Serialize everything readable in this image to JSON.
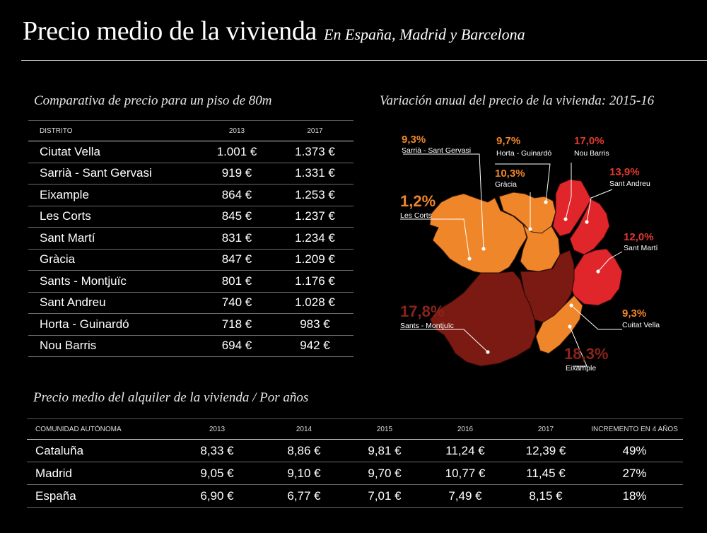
{
  "header": {
    "title": "Precio medio de la vivienda",
    "subtitle": "En España, Madrid y Barcelona"
  },
  "price_section": {
    "heading": "Comparativa de precio para un piso de 80m",
    "columns": [
      "DISTRITO",
      "2013",
      "2017"
    ],
    "rows": [
      [
        "Ciutat Vella",
        "1.001 €",
        "1.373 €"
      ],
      [
        "Sarrià - Sant Gervasi",
        "919 €",
        "1.331 €"
      ],
      [
        "Eixample",
        "864 €",
        "1.253 €"
      ],
      [
        "Les Corts",
        "845 €",
        "1.237 €"
      ],
      [
        "Sant Martí",
        "831 €",
        "1.234 €"
      ],
      [
        "Gràcia",
        "847 €",
        "1.209 €"
      ],
      [
        "Sants - Montjuïc",
        "801 €",
        "1.176 €"
      ],
      [
        "Sant Andreu",
        "740 €",
        "1.028 €"
      ],
      [
        "Horta - Guinardó",
        "718 €",
        "983 €"
      ],
      [
        "Nou Barris",
        "694 €",
        "942 €"
      ]
    ]
  },
  "map_section": {
    "heading": "Variación anual del precio de la vivienda: 2015-16",
    "colors": {
      "light": "#f0862a",
      "red": "#e0262b",
      "dark": "#7a1a12",
      "orange_text": "#f0862a",
      "red_text": "#e23a2e",
      "dark_text": "#8a2418"
    },
    "districts": [
      {
        "name": "Sarrià - Sant Gervasi",
        "pct": "9,3%"
      },
      {
        "name": "Horta - Guinardó",
        "pct": "9,7%"
      },
      {
        "name": "Nou Barris",
        "pct": "17,0%"
      },
      {
        "name": "Gràcia",
        "pct": "10,3%"
      },
      {
        "name": "Sant Andreu",
        "pct": "13,9%"
      },
      {
        "name": "Les Corts",
        "pct": "1,2%"
      },
      {
        "name": "Sant Martí",
        "pct": "12,0%"
      },
      {
        "name": "Cuitat Vella",
        "pct": "9,3%"
      },
      {
        "name": "Sants - Montjuïc",
        "pct": "17,8%"
      },
      {
        "name": "Eixample",
        "pct": "18,3%"
      }
    ]
  },
  "rent_section": {
    "heading": "Precio medio del alquiler de la vivienda / Por años",
    "columns": [
      "COMUNIDAD AUTÓNOMA",
      "2013",
      "2014",
      "2015",
      "2016",
      "2017",
      "INCREMENTO EN 4 AÑOS"
    ],
    "rows": [
      [
        "Cataluña",
        "8,33 €",
        "8,86 €",
        "9,81 €",
        "11,24 €",
        "12,39 €",
        "49%"
      ],
      [
        "Madrid",
        "9,05 €",
        "9,10 €",
        "9,70 €",
        "10,77 €",
        "11,45 €",
        "27%"
      ],
      [
        "España",
        "6,90 €",
        "6,77 €",
        "7,01 €",
        "7,49 €",
        "8,15 €",
        "18%"
      ]
    ]
  },
  "chart_data": [
    {
      "type": "table",
      "title": "Comparativa de precio para un piso de 80m",
      "columns": [
        "DISTRITO",
        "2013",
        "2017"
      ],
      "rows": [
        [
          "Ciutat Vella",
          1001,
          1373
        ],
        [
          "Sarrià - Sant Gervasi",
          919,
          1331
        ],
        [
          "Eixample",
          864,
          1253
        ],
        [
          "Les Corts",
          845,
          1237
        ],
        [
          "Sant Martí",
          831,
          1234
        ],
        [
          "Gràcia",
          847,
          1209
        ],
        [
          "Sants - Montjuïc",
          801,
          1176
        ],
        [
          "Sant Andreu",
          740,
          1028
        ],
        [
          "Horta - Guinardó",
          718,
          983
        ],
        [
          "Nou Barris",
          694,
          942
        ]
      ]
    },
    {
      "type": "heatmap",
      "title": "Variación anual del precio de la vivienda: 2015-16",
      "categories": [
        "Sarrià - Sant Gervasi",
        "Horta - Guinardó",
        "Nou Barris",
        "Gràcia",
        "Sant Andreu",
        "Les Corts",
        "Sant Martí",
        "Cuitat Vella",
        "Sants - Montjuïc",
        "Eixample"
      ],
      "values": [
        9.3,
        9.7,
        17.0,
        10.3,
        13.9,
        1.2,
        12.0,
        9.3,
        17.8,
        18.3
      ]
    },
    {
      "type": "table",
      "title": "Precio medio del alquiler de la vivienda / Por años",
      "columns": [
        "COMUNIDAD AUTÓNOMA",
        "2013",
        "2014",
        "2015",
        "2016",
        "2017",
        "INCREMENTO EN 4 AÑOS"
      ],
      "rows": [
        [
          "Cataluña",
          8.33,
          8.86,
          9.81,
          11.24,
          12.39,
          "49%"
        ],
        [
          "Madrid",
          9.05,
          9.1,
          9.7,
          10.77,
          11.45,
          "27%"
        ],
        [
          "España",
          6.9,
          6.77,
          7.01,
          7.49,
          8.15,
          "18%"
        ]
      ]
    }
  ]
}
